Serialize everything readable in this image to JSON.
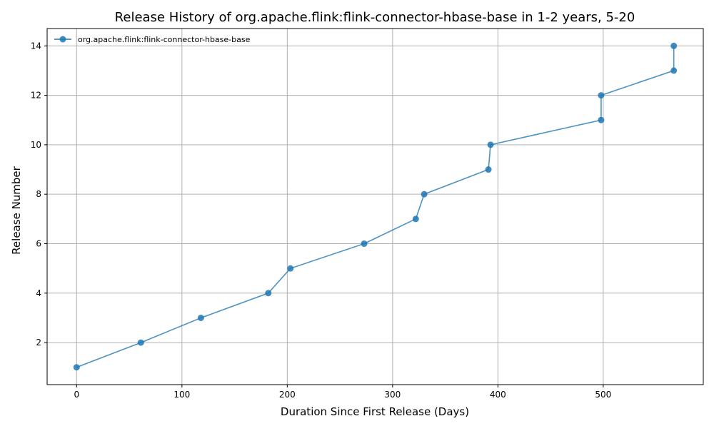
{
  "chart_data": {
    "type": "line",
    "title": "Release History of org.apache.flink:flink-connector-hbase-base in 1-2 years, 5-20",
    "xlabel": "Duration Since First Release (Days)",
    "ylabel": "Release Number",
    "xlim": [
      -28,
      595
    ],
    "ylim": [
      0.3,
      14.7
    ],
    "xticks": [
      0,
      100,
      200,
      300,
      400,
      500
    ],
    "yticks": [
      2,
      4,
      6,
      8,
      10,
      12,
      14
    ],
    "grid": true,
    "legend_position": "top-left",
    "series": [
      {
        "name": "org.apache.flink:flink-connector-hbase-base",
        "color": "#1f77b4",
        "marker": "circle",
        "x": [
          0,
          61,
          118,
          182,
          203,
          273,
          322,
          330,
          391,
          393,
          498,
          498,
          567,
          567
        ],
        "y": [
          1,
          2,
          3,
          4,
          5,
          6,
          7,
          8,
          9,
          10,
          11,
          12,
          13,
          14
        ]
      }
    ]
  }
}
